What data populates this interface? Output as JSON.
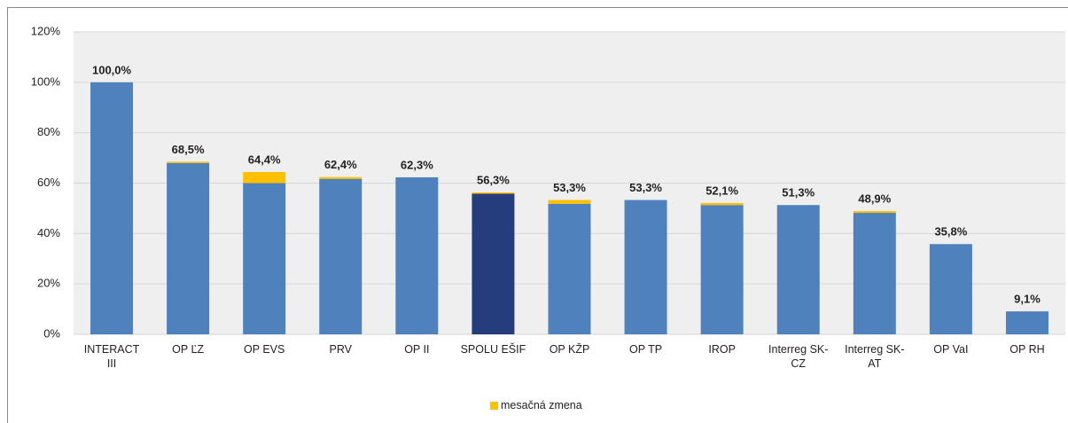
{
  "chart_data": {
    "type": "stacked_bar",
    "categories": [
      "INTERACT III",
      "OP ĽZ",
      "OP EVS",
      "PRV",
      "OP II",
      "SPOLU EŠIF",
      "OP KŽP",
      "OP TP",
      "IROP",
      "Interreg SK-CZ",
      "Interreg SK-AT",
      "OP VaI",
      "OP RH"
    ],
    "series": [
      {
        "colors": [
          "#4f81bd",
          "#4f81bd",
          "#4f81bd",
          "#4f81bd",
          "#4f81bd",
          "#253d7c",
          "#4f81bd",
          "#4f81bd",
          "#4f81bd",
          "#4f81bd",
          "#4f81bd",
          "#4f81bd",
          "#4f81bd"
        ],
        "values": [
          100.0,
          68.0,
          60.0,
          61.7,
          62.3,
          55.8,
          51.8,
          53.3,
          51.3,
          51.3,
          48.2,
          35.8,
          9.1
        ]
      },
      {
        "name": "mesačná zmena",
        "color": "#ffc000",
        "values": [
          0,
          0.5,
          4.4,
          0.7,
          0,
          0.5,
          1.5,
          0,
          0.8,
          0,
          0.7,
          0,
          0
        ]
      }
    ],
    "totals": [
      100.0,
      68.5,
      64.4,
      62.4,
      62.3,
      56.3,
      53.3,
      53.3,
      52.1,
      51.3,
      48.9,
      35.8,
      9.1
    ],
    "total_labels": [
      "100,0%",
      "68,5%",
      "64,4%",
      "62,4%",
      "62,3%",
      "56,3%",
      "53,3%",
      "53,3%",
      "52,1%",
      "51,3%",
      "48,9%",
      "35,8%",
      "9,1%"
    ],
    "ylim": [
      0,
      120
    ],
    "yticks": [
      {
        "value": 0,
        "label": "0%"
      },
      {
        "value": 20,
        "label": "20%"
      },
      {
        "value": 40,
        "label": "40%"
      },
      {
        "value": 60,
        "label": "60%"
      },
      {
        "value": 80,
        "label": "80%"
      },
      {
        "value": 100,
        "label": "100%"
      },
      {
        "value": 120,
        "label": "120%"
      }
    ],
    "grid": true,
    "legend": "bottom"
  }
}
